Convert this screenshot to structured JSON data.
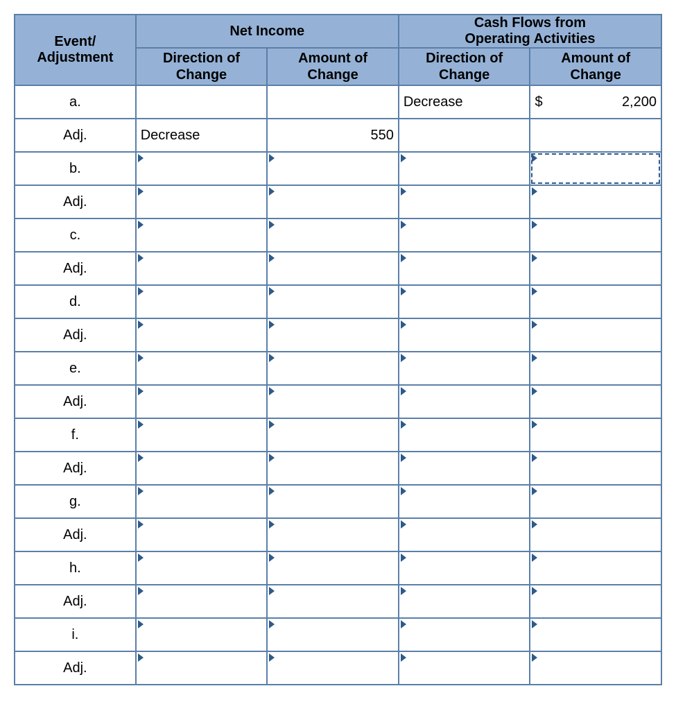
{
  "colors": {
    "header_bg": "#95b2d6",
    "border": "#5a7fa8",
    "marker": "#2e5a8a",
    "selection": "#2e5a8a",
    "text": "#000000",
    "background": "#ffffff"
  },
  "table": {
    "header": {
      "event": "Event/\nAdjustment",
      "net_income": "Net Income",
      "cash_flows": "Cash Flows from\nOperating Activities",
      "dir_change": "Direction of\nChange",
      "amt_change": "Amount of\nChange"
    },
    "rows": [
      {
        "label": "a.",
        "ni_dir": "",
        "ni_amt": "",
        "cf_dir": "Decrease",
        "cf_amt_cur": "$",
        "cf_amt_val": "2,200",
        "input": false
      },
      {
        "label": "Adj.",
        "ni_dir": "Decrease",
        "ni_amt": "550",
        "cf_dir": "",
        "cf_amt_cur": "",
        "cf_amt_val": "",
        "input": false
      },
      {
        "label": "b.",
        "ni_dir": "",
        "ni_amt": "",
        "cf_dir": "",
        "cf_amt_cur": "",
        "cf_amt_val": "",
        "input": true,
        "selected_col": "cf_amt"
      },
      {
        "label": "Adj.",
        "ni_dir": "",
        "ni_amt": "",
        "cf_dir": "",
        "cf_amt_cur": "",
        "cf_amt_val": "",
        "input": true
      },
      {
        "label": "c.",
        "ni_dir": "",
        "ni_amt": "",
        "cf_dir": "",
        "cf_amt_cur": "",
        "cf_amt_val": "",
        "input": true
      },
      {
        "label": "Adj.",
        "ni_dir": "",
        "ni_amt": "",
        "cf_dir": "",
        "cf_amt_cur": "",
        "cf_amt_val": "",
        "input": true
      },
      {
        "label": "d.",
        "ni_dir": "",
        "ni_amt": "",
        "cf_dir": "",
        "cf_amt_cur": "",
        "cf_amt_val": "",
        "input": true
      },
      {
        "label": "Adj.",
        "ni_dir": "",
        "ni_amt": "",
        "cf_dir": "",
        "cf_amt_cur": "",
        "cf_amt_val": "",
        "input": true
      },
      {
        "label": "e.",
        "ni_dir": "",
        "ni_amt": "",
        "cf_dir": "",
        "cf_amt_cur": "",
        "cf_amt_val": "",
        "input": true
      },
      {
        "label": "Adj.",
        "ni_dir": "",
        "ni_amt": "",
        "cf_dir": "",
        "cf_amt_cur": "",
        "cf_amt_val": "",
        "input": true
      },
      {
        "label": "f.",
        "ni_dir": "",
        "ni_amt": "",
        "cf_dir": "",
        "cf_amt_cur": "",
        "cf_amt_val": "",
        "input": true
      },
      {
        "label": "Adj.",
        "ni_dir": "",
        "ni_amt": "",
        "cf_dir": "",
        "cf_amt_cur": "",
        "cf_amt_val": "",
        "input": true
      },
      {
        "label": "g.",
        "ni_dir": "",
        "ni_amt": "",
        "cf_dir": "",
        "cf_amt_cur": "",
        "cf_amt_val": "",
        "input": true
      },
      {
        "label": "Adj.",
        "ni_dir": "",
        "ni_amt": "",
        "cf_dir": "",
        "cf_amt_cur": "",
        "cf_amt_val": "",
        "input": true
      },
      {
        "label": "h.",
        "ni_dir": "",
        "ni_amt": "",
        "cf_dir": "",
        "cf_amt_cur": "",
        "cf_amt_val": "",
        "input": true
      },
      {
        "label": "Adj.",
        "ni_dir": "",
        "ni_amt": "",
        "cf_dir": "",
        "cf_amt_cur": "",
        "cf_amt_val": "",
        "input": true
      },
      {
        "label": "i.",
        "ni_dir": "",
        "ni_amt": "",
        "cf_dir": "",
        "cf_amt_cur": "",
        "cf_amt_val": "",
        "input": true
      },
      {
        "label": "Adj.",
        "ni_dir": "",
        "ni_amt": "",
        "cf_dir": "",
        "cf_amt_cur": "",
        "cf_amt_val": "",
        "input": true
      }
    ]
  }
}
